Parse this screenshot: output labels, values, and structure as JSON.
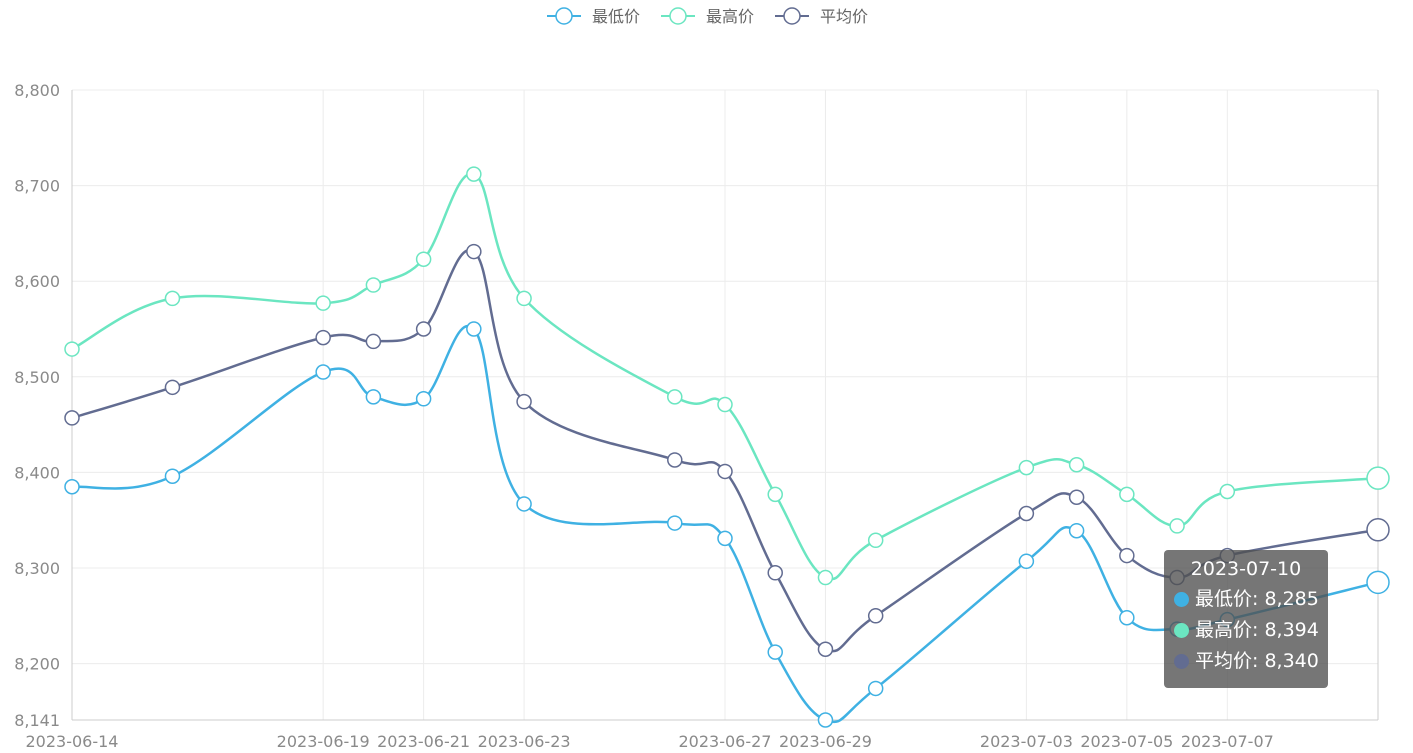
{
  "chart_data": {
    "type": "line",
    "smooth": true,
    "title": "",
    "xlabel": "",
    "ylabel": "",
    "legend_position": "top-center",
    "grid": true,
    "ylim": [
      8141,
      8800
    ],
    "y_ticks": [
      "8,800",
      "8,700",
      "8,600",
      "8,500",
      "8,400",
      "8,300",
      "8,200",
      "8,141"
    ],
    "y_tick_values": [
      8800,
      8700,
      8600,
      8500,
      8400,
      8300,
      8200,
      8141
    ],
    "x": [
      "2023-06-14",
      "2023-06-16",
      "2023-06-19",
      "2023-06-20",
      "2023-06-21",
      "2023-06-22",
      "2023-06-23",
      "2023-06-26",
      "2023-06-27",
      "2023-06-28",
      "2023-06-29",
      "2023-06-30",
      "2023-07-03",
      "2023-07-04",
      "2023-07-05",
      "2023-07-06",
      "2023-07-07",
      "2023-07-10"
    ],
    "x_tick_labels": [
      "2023-06-14",
      "2023-06-19",
      "2023-06-21",
      "2023-06-23",
      "2023-06-27",
      "2023-06-29",
      "2023-07-03",
      "2023-07-05",
      "2023-07-07"
    ],
    "series": [
      {
        "name": "最低价",
        "color": "#3fb1e3",
        "values": [
          8385,
          8396,
          8505,
          8479,
          8477,
          8550,
          8367,
          8347,
          8331,
          8212,
          8141,
          8174,
          8307,
          8339,
          8248,
          8236,
          8246,
          8285
        ]
      },
      {
        "name": "最高价",
        "color": "#6be6c1",
        "values": [
          8529,
          8582,
          8577,
          8596,
          8623,
          8712,
          8582,
          8479,
          8471,
          8377,
          8290,
          8329,
          8405,
          8408,
          8377,
          8344,
          8380,
          8394
        ]
      },
      {
        "name": "平均价",
        "color": "#626c91",
        "values": [
          8457,
          8489,
          8541,
          8537,
          8550,
          8631,
          8474,
          8413,
          8401,
          8295,
          8215,
          8250,
          8357,
          8374,
          8313,
          8290,
          8313,
          8340
        ]
      }
    ]
  },
  "tooltip": {
    "date": "2023-07-10",
    "rows": [
      {
        "label": "最低价: 8,285",
        "color": "#3fb1e3"
      },
      {
        "label": "最高价: 8,394",
        "color": "#6be6c1"
      },
      {
        "label": "平均价: 8,340",
        "color": "#626c91"
      }
    ]
  }
}
